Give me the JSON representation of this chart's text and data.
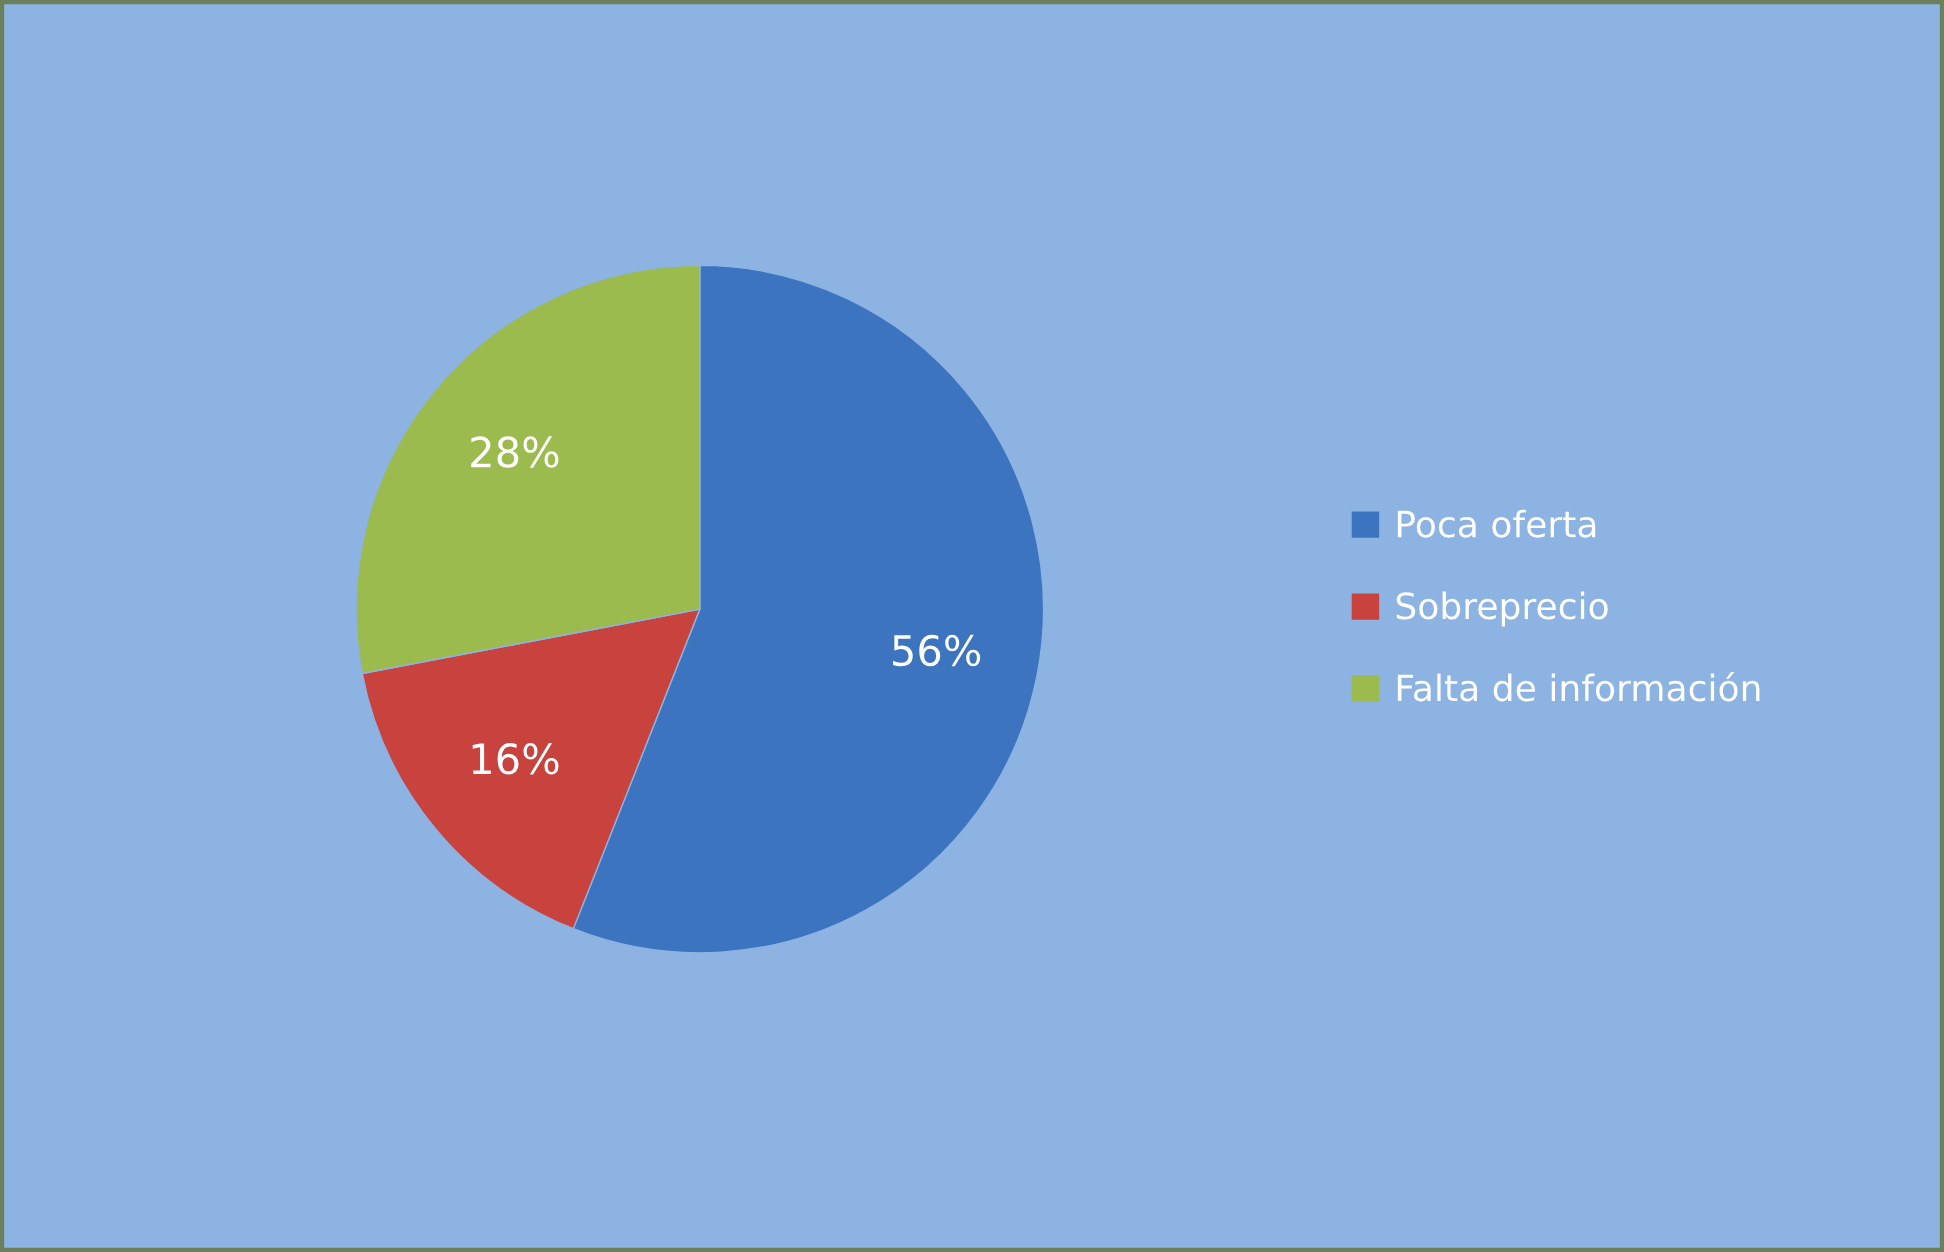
{
  "chart_data": {
    "type": "pie",
    "categories": [
      "Poca oferta",
      "Sobreprecio",
      "Falta de información"
    ],
    "values": [
      56,
      16,
      28
    ],
    "colors": [
      "#3c74c0",
      "#c8423e",
      "#9bbb4e"
    ],
    "value_labels": [
      "56%",
      "16%",
      "28%"
    ],
    "legend": "right"
  }
}
